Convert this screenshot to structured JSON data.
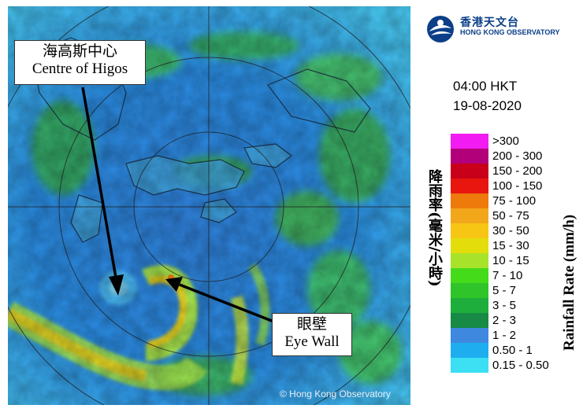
{
  "map": {
    "copyright": "© Hong Kong Observatory",
    "callouts": {
      "centre": {
        "zh": "海高斯中心",
        "en": "Centre of Higos"
      },
      "eye_wall": {
        "zh": "眼壁",
        "en": "Eye Wall"
      }
    }
  },
  "header": {
    "org_zh": "香港天文台",
    "org_en": "HONG KONG OBSERVATORY",
    "time": "04:00 HKT",
    "date": "19-08-2020"
  },
  "legend": {
    "unit_zh": "降雨率(毫米/小時)",
    "unit_en": "Rainfall Rate (mm/h)",
    "classes": [
      {
        "label": ">300",
        "color": "#f21cf2"
      },
      {
        "label": "200 - 300",
        "color": "#b2007a"
      },
      {
        "label": "150 - 200",
        "color": "#c8001a"
      },
      {
        "label": "100 - 150",
        "color": "#e8160e"
      },
      {
        "label": "75 - 100",
        "color": "#ee7a0c"
      },
      {
        "label": "50 - 75",
        "color": "#f2a61a"
      },
      {
        "label": "30 - 50",
        "color": "#f7c614"
      },
      {
        "label": "15 - 30",
        "color": "#e3dd0c"
      },
      {
        "label": "10 - 15",
        "color": "#a8e22a"
      },
      {
        "label": "7 - 10",
        "color": "#44dc1a"
      },
      {
        "label": "5 - 7",
        "color": "#2ec42a"
      },
      {
        "label": "3 - 5",
        "color": "#1eae3c"
      },
      {
        "label": "2 - 3",
        "color": "#178a46"
      },
      {
        "label": "1 - 2",
        "color": "#3e88e0"
      },
      {
        "label": "0.50 - 1",
        "color": "#1eaef0"
      },
      {
        "label": "0.15 - 0.50",
        "color": "#3ce0f2"
      }
    ]
  }
}
